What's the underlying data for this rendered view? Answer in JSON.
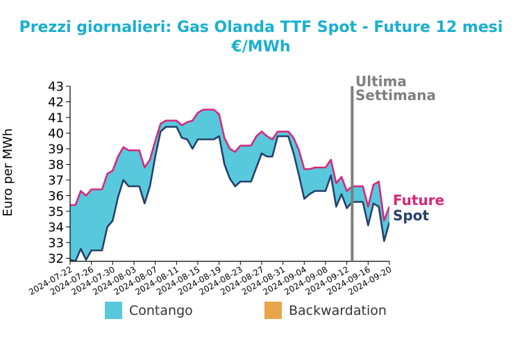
{
  "title_line1": "Prezzi giornalieri: Gas Olanda TTF Spot - Future 12 mesi",
  "title_line2": "€/MWh",
  "chart_data": {
    "type": "area",
    "ylabel": "Euro per MWh",
    "ylim": [
      31.8,
      43
    ],
    "yticks": [
      32,
      33,
      34,
      35,
      36,
      37,
      38,
      39,
      40,
      41,
      42,
      43
    ],
    "xlim": [
      "2024-07-22",
      "2024-09-20"
    ],
    "xticks": [
      "2024-07-22",
      "2024-07-26",
      "2024-07-30",
      "2024-08-03",
      "2024-08-07",
      "2024-08-11",
      "2024-08-15",
      "2024-08-19",
      "2024-08-23",
      "2024-08-27",
      "2024-08-31",
      "2024-09-04",
      "2024-09-08",
      "2024-09-12",
      "2024-09-16",
      "2024-09-20"
    ],
    "x": [
      "2024-07-22",
      "2024-07-23",
      "2024-07-24",
      "2024-07-25",
      "2024-07-26",
      "2024-07-27",
      "2024-07-28",
      "2024-07-29",
      "2024-07-30",
      "2024-07-31",
      "2024-08-01",
      "2024-08-02",
      "2024-08-03",
      "2024-08-04",
      "2024-08-05",
      "2024-08-06",
      "2024-08-07",
      "2024-08-08",
      "2024-08-09",
      "2024-08-10",
      "2024-08-11",
      "2024-08-12",
      "2024-08-13",
      "2024-08-14",
      "2024-08-15",
      "2024-08-16",
      "2024-08-17",
      "2024-08-18",
      "2024-08-19",
      "2024-08-20",
      "2024-08-21",
      "2024-08-22",
      "2024-08-23",
      "2024-08-24",
      "2024-08-25",
      "2024-08-26",
      "2024-08-27",
      "2024-08-28",
      "2024-08-29",
      "2024-08-30",
      "2024-08-31",
      "2024-09-01",
      "2024-09-02",
      "2024-09-03",
      "2024-09-04",
      "2024-09-05",
      "2024-09-06",
      "2024-09-07",
      "2024-09-08",
      "2024-09-09",
      "2024-09-10",
      "2024-09-11",
      "2024-09-12",
      "2024-09-13",
      "2024-09-14",
      "2024-09-15",
      "2024-09-16",
      "2024-09-17",
      "2024-09-18",
      "2024-09-19",
      "2024-09-20"
    ],
    "series": [
      {
        "name": "Future",
        "color": "#d6287a",
        "values": [
          35.4,
          35.4,
          36.3,
          36.0,
          36.4,
          36.4,
          36.4,
          37.4,
          37.6,
          38.5,
          39.1,
          38.9,
          38.9,
          38.9,
          37.8,
          38.3,
          39.5,
          40.6,
          40.8,
          40.8,
          40.8,
          40.5,
          40.7,
          40.8,
          41.3,
          41.5,
          41.5,
          41.5,
          41.2,
          39.7,
          39.0,
          38.8,
          39.2,
          39.2,
          39.2,
          39.8,
          40.1,
          39.8,
          39.6,
          40.1,
          40.1,
          40.1,
          39.7,
          38.9,
          37.7,
          37.7,
          37.8,
          37.8,
          37.8,
          38.3,
          36.8,
          37.2,
          36.3,
          36.6,
          36.6,
          36.6,
          35.3,
          36.7,
          36.9,
          34.4,
          35.3
        ]
      },
      {
        "name": "Spot",
        "color": "#27406a",
        "values": [
          31.9,
          31.8,
          32.6,
          31.9,
          32.5,
          32.5,
          32.5,
          34.0,
          34.4,
          35.9,
          37.0,
          36.6,
          36.6,
          36.6,
          35.5,
          36.6,
          38.5,
          40.1,
          40.4,
          40.4,
          40.4,
          39.7,
          39.6,
          39.0,
          39.6,
          39.6,
          39.6,
          39.6,
          39.8,
          38.0,
          37.1,
          36.6,
          36.9,
          36.9,
          36.9,
          37.8,
          38.7,
          38.5,
          38.5,
          39.8,
          39.8,
          39.8,
          38.7,
          37.3,
          35.8,
          36.1,
          36.3,
          36.3,
          36.3,
          37.3,
          35.3,
          36.1,
          35.2,
          35.6,
          35.6,
          35.6,
          34.1,
          35.5,
          35.3,
          33.1,
          34.3
        ]
      }
    ],
    "area_fill": {
      "Contango": "#58c8dc",
      "Backwardation": "#e8a54a"
    },
    "vline": {
      "x": "2024-09-13",
      "color": "#7f7f7f",
      "label_line1": "Ultima",
      "label_line2": "Settimana"
    },
    "series_labels": {
      "future": "Future",
      "spot": "Spot"
    },
    "legend": [
      {
        "label": "Contango",
        "color": "#58c8dc"
      },
      {
        "label": "Backwardation",
        "color": "#e8a54a"
      }
    ],
    "legend_position": "bottom",
    "grid": false
  }
}
